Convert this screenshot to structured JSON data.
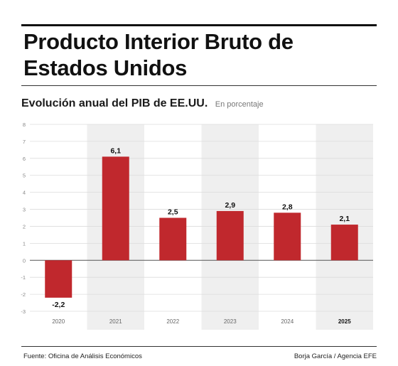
{
  "header": {
    "title_line1": "Producto Interior Bruto de",
    "title_line2": "Estados Unidos"
  },
  "chart_data": {
    "type": "bar",
    "title": "Evolución anual del PIB de EE.UU.",
    "subtitle": "En porcentaje",
    "categories": [
      "2020",
      "2021",
      "2022",
      "2023",
      "2024",
      "2025"
    ],
    "values": [
      -2.2,
      6.1,
      2.5,
      2.9,
      2.8,
      2.1
    ],
    "data_labels": [
      "-2,2",
      "6,1",
      "2,5",
      "2,9",
      "2,8",
      "2,1"
    ],
    "ylim": [
      -3,
      8
    ],
    "yticks": [
      -3,
      -2,
      -1,
      0,
      1,
      2,
      3,
      4,
      5,
      6,
      7,
      8
    ],
    "grid": true,
    "bar_color": "#c0282d",
    "band_color": "#efefef",
    "highlight_category": "2025"
  },
  "footer": {
    "source": "Fuente: Oficina de Análisis Económicos",
    "credit": "Borja García / Agencia EFE"
  }
}
